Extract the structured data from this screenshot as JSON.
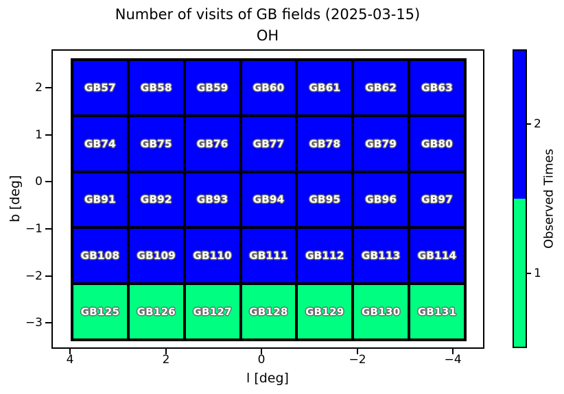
{
  "title": {
    "line1": "Number of visits of GB fields (2025-03-15)",
    "line2": "OH"
  },
  "axes": {
    "xlabel": "l [deg]",
    "ylabel": "b [deg]",
    "x_tick_labels": [
      "4",
      "2",
      "0",
      "−2",
      "−4"
    ],
    "y_tick_labels": [
      "2",
      "1",
      "0",
      "−1",
      "−2",
      "−3"
    ]
  },
  "colorbar": {
    "label": "Observed Times",
    "tick_labels": [
      "2",
      "1"
    ],
    "segment_colors_top_to_bottom": [
      "#0000FF",
      "#00FF80"
    ]
  },
  "chart_data": {
    "type": "heatmap",
    "title": "Number of visits of GB fields (2025-03-15) OH",
    "xlabel": "l [deg]",
    "ylabel": "b [deg]",
    "x_axis": {
      "tick_values": [
        4,
        2,
        0,
        -2,
        -4
      ],
      "inverted": true,
      "range_left_to_right": [
        4.4,
        -4.65
      ]
    },
    "y_axis": {
      "tick_values": [
        2,
        1,
        0,
        -1,
        -2,
        -3
      ],
      "range_bottom_to_top": [
        -3.55,
        2.8
      ]
    },
    "legend": {
      "label": "Observed Times",
      "values": [
        1,
        2
      ],
      "colors": {
        "1": "#00FF80",
        "2": "#0000FF"
      }
    },
    "rows": [
      {
        "b_center": 2.0,
        "fields": [
          "GB57",
          "GB58",
          "GB59",
          "GB60",
          "GB61",
          "GB62",
          "GB63"
        ],
        "visits": [
          2,
          2,
          2,
          2,
          2,
          2,
          2
        ]
      },
      {
        "b_center": 0.8,
        "fields": [
          "GB74",
          "GB75",
          "GB76",
          "GB77",
          "GB78",
          "GB79",
          "GB80"
        ],
        "visits": [
          2,
          2,
          2,
          2,
          2,
          2,
          2
        ]
      },
      {
        "b_center": -0.4,
        "fields": [
          "GB91",
          "GB92",
          "GB93",
          "GB94",
          "GB95",
          "GB96",
          "GB97"
        ],
        "visits": [
          2,
          2,
          2,
          2,
          2,
          2,
          2
        ]
      },
      {
        "b_center": -1.6,
        "fields": [
          "GB108",
          "GB109",
          "GB110",
          "GB111",
          "GB112",
          "GB113",
          "GB114"
        ],
        "visits": [
          2,
          2,
          2,
          2,
          2,
          2,
          2
        ]
      },
      {
        "b_center": -2.8,
        "fields": [
          "GB125",
          "GB126",
          "GB127",
          "GB128",
          "GB129",
          "GB130",
          "GB131"
        ],
        "visits": [
          1,
          1,
          1,
          1,
          1,
          1,
          1
        ]
      }
    ]
  }
}
